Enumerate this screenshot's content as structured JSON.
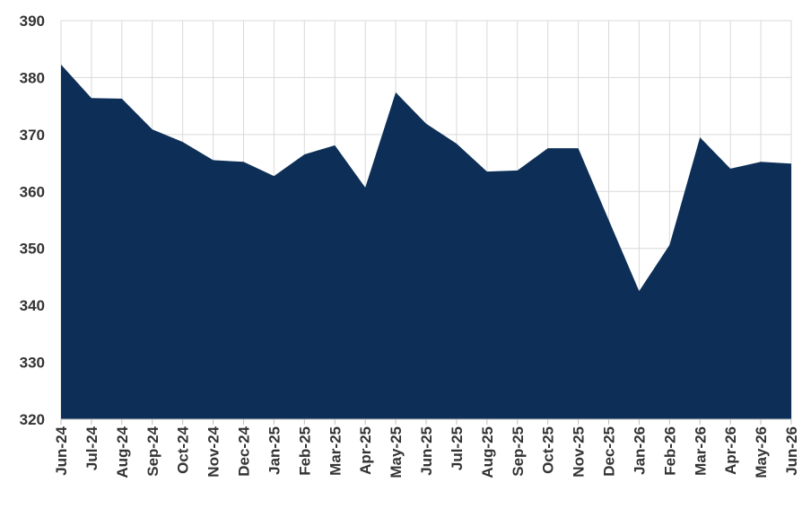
{
  "chart_data": {
    "type": "area",
    "color": "#0d2f57",
    "grid": true,
    "categories": [
      "Jun-24",
      "Jul-24",
      "Aug-24",
      "Sep-24",
      "Oct-24",
      "Nov-24",
      "Dec-24",
      "Jan-25",
      "Feb-25",
      "Mar-25",
      "Apr-25",
      "May-25",
      "Jun-25",
      "Jul-25",
      "Aug-25",
      "Sep-25",
      "Oct-25",
      "Nov-25",
      "Dec-25",
      "Jan-26",
      "Feb-26",
      "Mar-26",
      "Apr-26",
      "May-26",
      "Jun-26"
    ],
    "values": [
      382.3,
      376.4,
      376.3,
      370.9,
      368.7,
      365.5,
      365.2,
      362.7,
      366.5,
      368.1,
      360.7,
      377.4,
      371.9,
      368.4,
      363.5,
      363.7,
      367.6,
      367.6,
      355.0,
      342.5,
      350.6,
      369.5,
      364.0,
      365.2,
      364.9
    ],
    "ylim": [
      320,
      390
    ],
    "yticks": [
      320,
      330,
      340,
      350,
      360,
      370,
      380,
      390
    ]
  }
}
